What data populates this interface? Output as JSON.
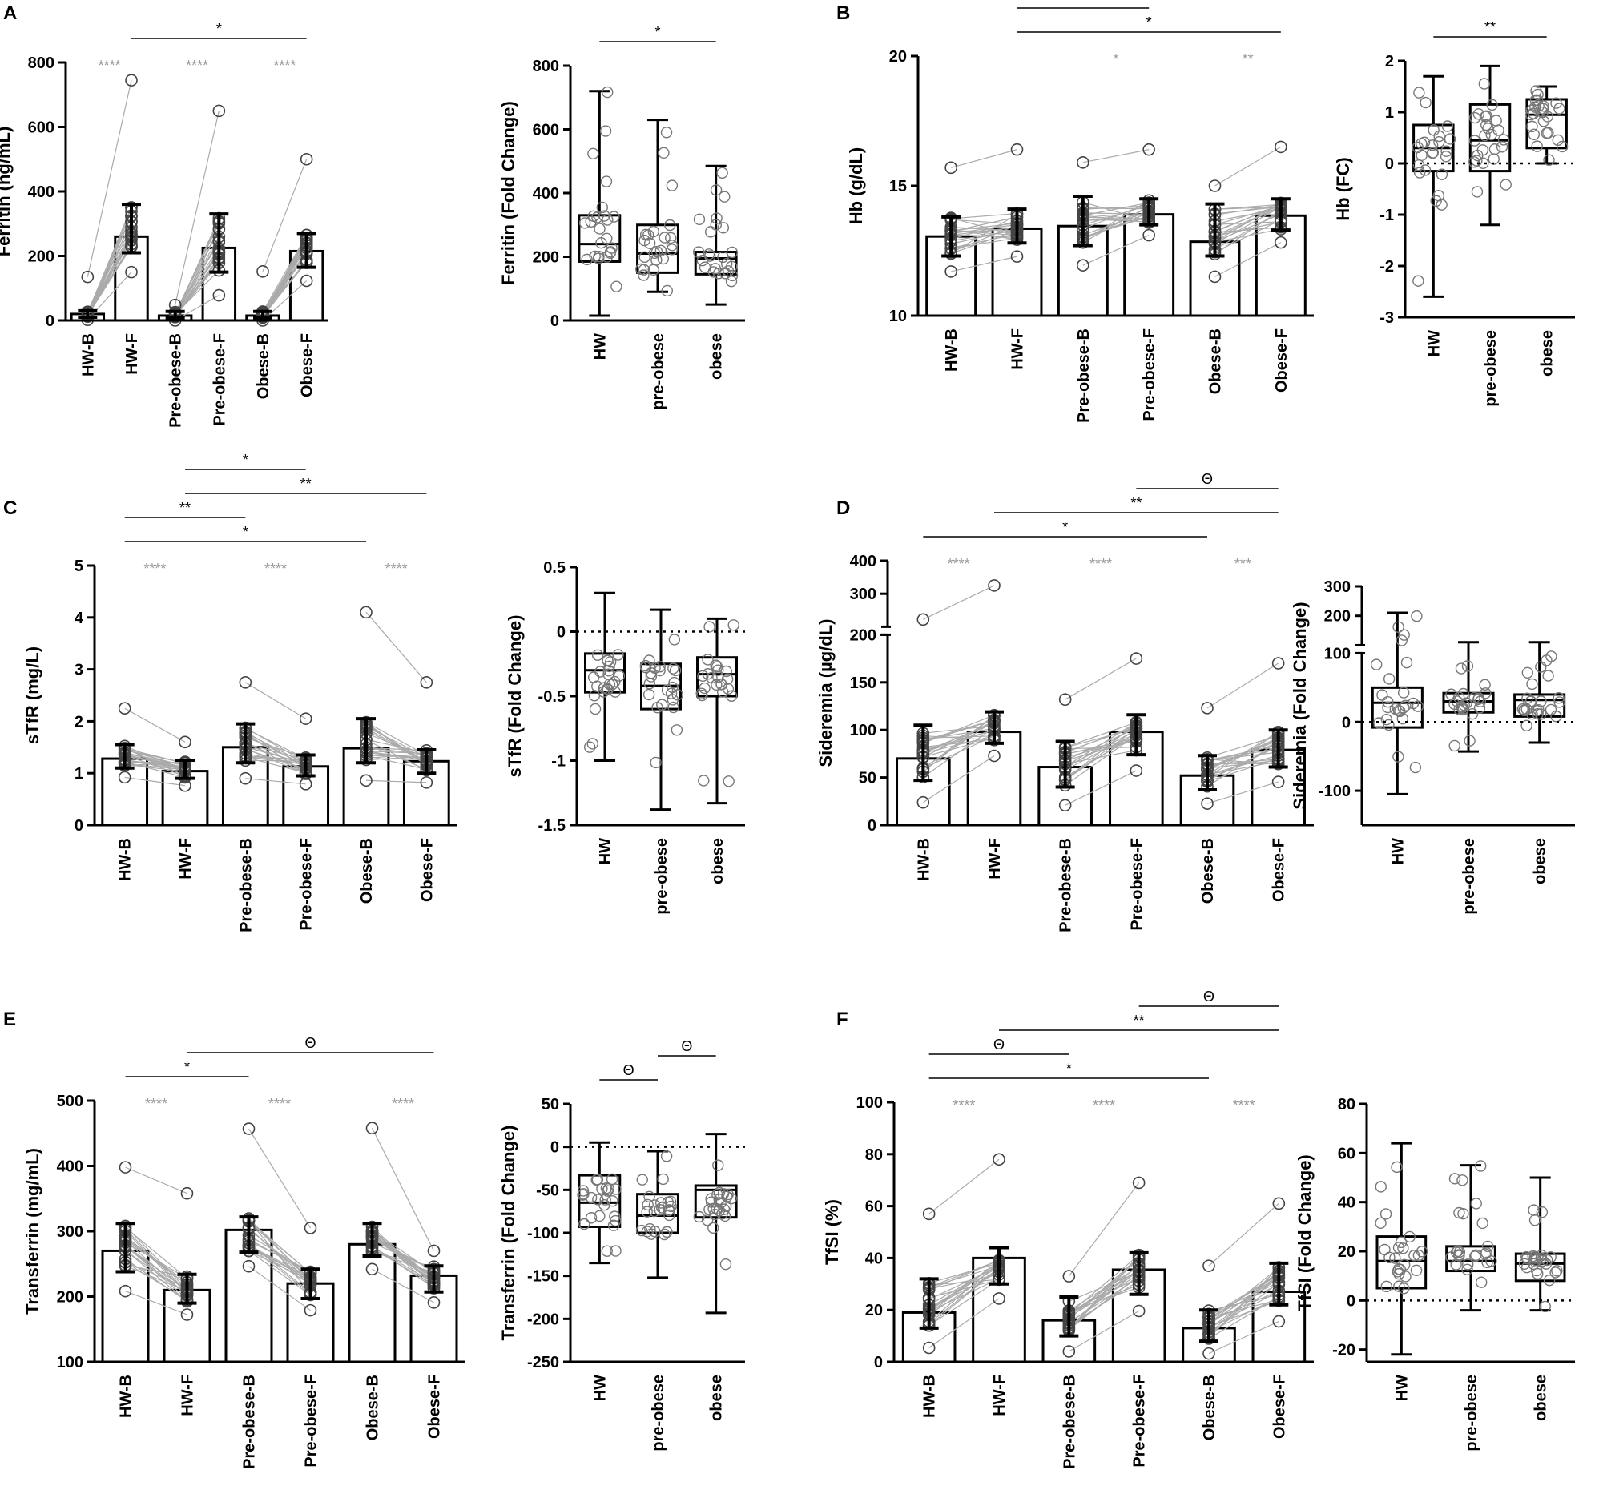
{
  "figure": {
    "panels": [
      {
        "letter": "A"
      },
      {
        "letter": "B"
      },
      {
        "letter": "C"
      },
      {
        "letter": "D"
      },
      {
        "letter": "E"
      },
      {
        "letter": "F"
      }
    ]
  },
  "colors": {
    "bar_fill": "#ffffff",
    "axis": "#000000",
    "paired_line": "#aaaaaa",
    "point_stroke": "#444444",
    "within_sig": "#999999",
    "between_sig": "#000000"
  },
  "chart_data": [
    {
      "id": "A-left",
      "panel": "A",
      "type": "bar",
      "ylabel": "Ferritin (ng/mL)",
      "ylim": [
        0,
        800
      ],
      "yticks": [
        0,
        200,
        400,
        600,
        800
      ],
      "categories": [
        "HW-B",
        "HW-F",
        "Pre-obese-B",
        "Pre-obese-F",
        "Obese-B",
        "Obese-F"
      ],
      "values": [
        20,
        260,
        15,
        225,
        15,
        215
      ],
      "error_low": [
        10,
        210,
        8,
        150,
        8,
        165
      ],
      "error_high": [
        30,
        360,
        28,
        330,
        28,
        270
      ],
      "point_max": [
        135,
        745,
        48,
        650,
        152,
        500
      ],
      "within_sig": [
        {
          "pair": [
            0,
            1
          ],
          "label": "****"
        },
        {
          "pair": [
            2,
            3
          ],
          "label": "****"
        },
        {
          "pair": [
            4,
            5
          ],
          "label": "****"
        }
      ],
      "between_sig": [
        {
          "from": 1,
          "to": 5,
          "label": "*"
        }
      ]
    },
    {
      "id": "A-right",
      "panel": "A",
      "type": "box",
      "ylabel": "Ferritin (Fold Change)",
      "ylim": [
        0,
        800
      ],
      "yticks": [
        0,
        200,
        400,
        600,
        800
      ],
      "categories": [
        "HW",
        "pre-obese",
        "obese"
      ],
      "boxes": [
        {
          "min": 15,
          "q1": 185,
          "median": 240,
          "q3": 330,
          "max": 720
        },
        {
          "min": 90,
          "q1": 150,
          "median": 210,
          "q3": 300,
          "max": 630
        },
        {
          "min": 50,
          "q1": 145,
          "median": 195,
          "q3": 215,
          "max": 485
        }
      ],
      "between_sig": [
        {
          "from": 0,
          "to": 2,
          "label": "*"
        }
      ]
    },
    {
      "id": "B-left",
      "panel": "B",
      "type": "bar",
      "ylabel": "Hb (g/dL)",
      "ylim": [
        10,
        20
      ],
      "yticks": [
        10,
        15,
        20
      ],
      "categories": [
        "HW-B",
        "HW-F",
        "Pre-obese-B",
        "Pre-obese-F",
        "Obese-B",
        "Obese-F"
      ],
      "values": [
        13.05,
        13.35,
        13.45,
        13.9,
        12.85,
        13.85
      ],
      "error_low": [
        12.3,
        12.8,
        12.7,
        13.5,
        12.3,
        13.3
      ],
      "error_high": [
        13.8,
        14.1,
        14.6,
        14.5,
        14.3,
        14.5
      ],
      "point_max": [
        15.7,
        16.4,
        15.9,
        16.4,
        15.0,
        16.5
      ],
      "within_sig": [
        {
          "pair": [
            2,
            3
          ],
          "label": "*"
        },
        {
          "pair": [
            4,
            5
          ],
          "label": "**"
        }
      ],
      "between_sig": [
        {
          "from": 1,
          "to": 5,
          "label": "*"
        },
        {
          "from": 1,
          "to": 3,
          "label": "**"
        }
      ]
    },
    {
      "id": "B-right",
      "panel": "B",
      "type": "box",
      "ylabel": "Hb (FC)",
      "ylim": [
        -3,
        2
      ],
      "yticks": [
        -3,
        -2,
        -1,
        0,
        1,
        2
      ],
      "zero_line": true,
      "categories": [
        "HW",
        "pre-obese",
        "obese"
      ],
      "boxes": [
        {
          "min": -2.6,
          "q1": -0.15,
          "median": 0.3,
          "q3": 0.75,
          "max": 1.7
        },
        {
          "min": -1.2,
          "q1": -0.15,
          "median": 0.45,
          "q3": 1.15,
          "max": 1.9
        },
        {
          "min": 0.0,
          "q1": 0.3,
          "median": 0.95,
          "q3": 1.25,
          "max": 1.5
        }
      ],
      "between_sig": [
        {
          "from": 0,
          "to": 2,
          "label": "**"
        }
      ]
    },
    {
      "id": "C-left",
      "panel": "C",
      "type": "bar",
      "ylabel": "sTfR (mg/L)",
      "ylim": [
        0,
        5
      ],
      "yticks": [
        0,
        1,
        2,
        3,
        4,
        5
      ],
      "categories": [
        "HW-B",
        "HW-F",
        "Pre-obese-B",
        "Pre-obese-F",
        "Obese-B",
        "Obese-F"
      ],
      "values": [
        1.28,
        1.04,
        1.5,
        1.13,
        1.48,
        1.23
      ],
      "error_low": [
        1.1,
        0.9,
        1.2,
        0.95,
        1.2,
        1.0
      ],
      "error_high": [
        1.55,
        1.25,
        1.95,
        1.35,
        2.05,
        1.45
      ],
      "point_max": [
        2.25,
        1.6,
        2.75,
        2.05,
        4.1,
        2.75
      ],
      "within_sig": [
        {
          "pair": [
            0,
            1
          ],
          "label": "****"
        },
        {
          "pair": [
            2,
            3
          ],
          "label": "****"
        },
        {
          "pair": [
            4,
            5
          ],
          "label": "****"
        }
      ],
      "between_sig": [
        {
          "from": 0,
          "to": 4,
          "label": "*"
        },
        {
          "from": 0,
          "to": 2,
          "label": "**"
        },
        {
          "from": 1,
          "to": 5,
          "label": "**"
        },
        {
          "from": 1,
          "to": 3,
          "label": "*"
        }
      ]
    },
    {
      "id": "C-right",
      "panel": "C",
      "type": "box",
      "ylabel": "sTfR (Fold Change)",
      "ylim": [
        -1.5,
        0.5
      ],
      "yticks": [
        -1.5,
        -1.0,
        -0.5,
        0.0,
        0.5
      ],
      "zero_line": true,
      "categories": [
        "HW",
        "pre-obese",
        "obese"
      ],
      "boxes": [
        {
          "min": -1.0,
          "q1": -0.47,
          "median": -0.3,
          "q3": -0.17,
          "max": 0.3
        },
        {
          "min": -1.38,
          "q1": -0.6,
          "median": -0.42,
          "q3": -0.25,
          "max": 0.17
        },
        {
          "min": -1.33,
          "q1": -0.5,
          "median": -0.33,
          "q3": -0.2,
          "max": 0.1
        }
      ]
    },
    {
      "id": "D-left",
      "panel": "D",
      "type": "bar",
      "ylabel": "Sideremia (µg/dL)",
      "ylim": [
        0,
        400
      ],
      "yticks": [
        0,
        50,
        100,
        150,
        200,
        300,
        400
      ],
      "axis_break": [
        200,
        200
      ],
      "categories": [
        "HW-B",
        "HW-F",
        "Pre-obese-B",
        "Pre-obese-F",
        "Obese-B",
        "Obese-F"
      ],
      "values": [
        70,
        98,
        61,
        98,
        52,
        79
      ],
      "error_low": [
        47,
        86,
        40,
        74,
        37,
        61
      ],
      "error_high": [
        105,
        119,
        88,
        116,
        73,
        100
      ],
      "point_max": [
        222,
        325,
        132,
        175,
        123,
        170
      ],
      "within_sig": [
        {
          "pair": [
            0,
            1
          ],
          "label": "****"
        },
        {
          "pair": [
            2,
            3
          ],
          "label": "****"
        },
        {
          "pair": [
            4,
            5
          ],
          "label": "***"
        }
      ],
      "between_sig": [
        {
          "from": 0,
          "to": 4,
          "label": "*"
        },
        {
          "from": 1,
          "to": 5,
          "label": "**"
        },
        {
          "from": 3,
          "to": 5,
          "label": "Θ"
        }
      ]
    },
    {
      "id": "D-right",
      "panel": "D",
      "type": "box",
      "ylabel": "Sideremia (Fold Change)",
      "ylim": [
        -150,
        300
      ],
      "yticks": [
        -100,
        0,
        100,
        200,
        300
      ],
      "axis_break": [
        100,
        100
      ],
      "zero_line": true,
      "categories": [
        "HW",
        "pre-obese",
        "obese"
      ],
      "boxes": [
        {
          "min": -105,
          "q1": -8,
          "median": 28,
          "q3": 50,
          "max": 210
        },
        {
          "min": -43,
          "q1": 14,
          "median": 30,
          "q3": 42,
          "max": 110
        },
        {
          "min": -30,
          "q1": 8,
          "median": 32,
          "q3": 40,
          "max": 110
        }
      ]
    },
    {
      "id": "E-left",
      "panel": "E",
      "type": "bar",
      "ylabel": "Transferrin (mg/mL)",
      "ylim": [
        100,
        500
      ],
      "yticks": [
        100,
        200,
        300,
        400,
        500
      ],
      "categories": [
        "HW-B",
        "HW-F",
        "Pre-obese-B",
        "Pre-obese-F",
        "Obese-B",
        "Obese-F"
      ],
      "values": [
        270,
        210,
        302,
        220,
        280,
        232
      ],
      "error_low": [
        238,
        190,
        268,
        197,
        262,
        207
      ],
      "error_high": [
        312,
        234,
        322,
        242,
        312,
        247
      ],
      "point_max": [
        398,
        358,
        457,
        305,
        458,
        270
      ],
      "within_sig": [
        {
          "pair": [
            0,
            1
          ],
          "label": "****"
        },
        {
          "pair": [
            2,
            3
          ],
          "label": "****"
        },
        {
          "pair": [
            4,
            5
          ],
          "label": "****"
        }
      ],
      "between_sig": [
        {
          "from": 0,
          "to": 2,
          "label": "*"
        },
        {
          "from": 1,
          "to": 5,
          "label": "Θ"
        }
      ]
    },
    {
      "id": "E-right",
      "panel": "E",
      "type": "box",
      "ylabel": "Transferrin (Fold Change)",
      "ylim": [
        -250,
        50
      ],
      "yticks": [
        -250,
        -200,
        -150,
        -100,
        -50,
        0,
        50
      ],
      "zero_line": true,
      "categories": [
        "HW",
        "pre-obese",
        "obese"
      ],
      "boxes": [
        {
          "min": -135,
          "q1": -93,
          "median": -65,
          "q3": -33,
          "max": 5
        },
        {
          "min": -152,
          "q1": -100,
          "median": -80,
          "q3": -55,
          "max": -5
        },
        {
          "min": -193,
          "q1": -82,
          "median": -50,
          "q3": -45,
          "max": 15
        }
      ],
      "between_sig": [
        {
          "from": 0,
          "to": 1,
          "label": "Θ"
        },
        {
          "from": 1,
          "to": 2,
          "label": "Θ"
        }
      ]
    },
    {
      "id": "F-left",
      "panel": "F",
      "type": "bar",
      "ylabel": "TfSI (%)",
      "ylim": [
        0,
        100
      ],
      "yticks": [
        0,
        20,
        40,
        60,
        80,
        100
      ],
      "categories": [
        "HW-B",
        "HW-F",
        "Pre-obese-B",
        "Pre-obese-F",
        "Obese-B",
        "Obese-F"
      ],
      "values": [
        19,
        40,
        16,
        35.5,
        13,
        27
      ],
      "error_low": [
        13,
        30,
        10,
        26,
        8,
        22
      ],
      "error_high": [
        32,
        44,
        25,
        42,
        20,
        38
      ],
      "point_max": [
        57,
        78,
        33,
        69,
        37,
        61
      ],
      "within_sig": [
        {
          "pair": [
            0,
            1
          ],
          "label": "****"
        },
        {
          "pair": [
            2,
            3
          ],
          "label": "****"
        },
        {
          "pair": [
            4,
            5
          ],
          "label": "****"
        }
      ],
      "between_sig": [
        {
          "from": 0,
          "to": 4,
          "label": "*"
        },
        {
          "from": 0,
          "to": 2,
          "label": "Θ"
        },
        {
          "from": 1,
          "to": 5,
          "label": "**"
        },
        {
          "from": 3,
          "to": 5,
          "label": "Θ"
        }
      ]
    },
    {
      "id": "F-right",
      "panel": "F",
      "type": "box",
      "ylabel": "TfSI (Fold Change)",
      "ylim": [
        -25,
        80
      ],
      "yticks": [
        -20,
        0,
        20,
        40,
        60,
        80
      ],
      "zero_line": true,
      "categories": [
        "HW",
        "pre-obese",
        "obese"
      ],
      "boxes": [
        {
          "min": -22,
          "q1": 5,
          "median": 16,
          "q3": 26,
          "max": 64
        },
        {
          "min": -4,
          "q1": 12,
          "median": 16,
          "q3": 22,
          "max": 55
        },
        {
          "min": -4,
          "q1": 8,
          "median": 15,
          "q3": 19,
          "max": 50
        }
      ]
    }
  ]
}
